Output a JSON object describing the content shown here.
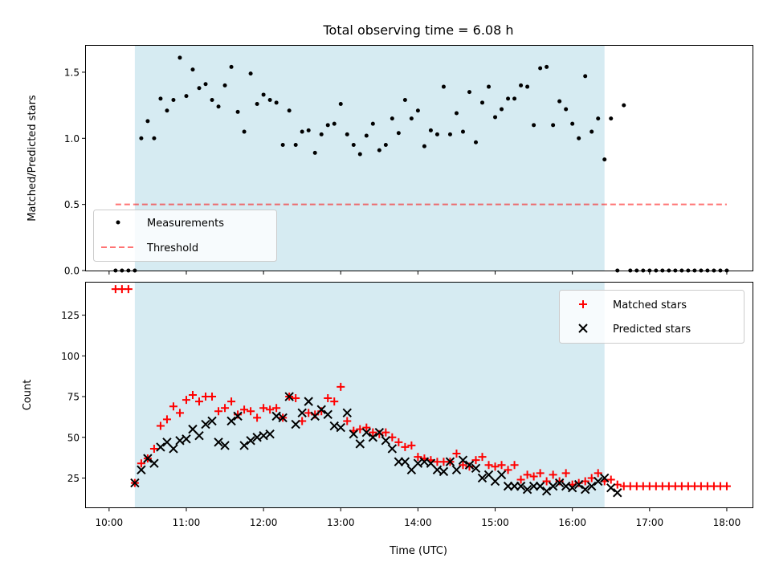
{
  "colors": {
    "span_fill": "#add8e6",
    "measurement": "#000000",
    "threshold": "#ff0000",
    "matched": "#ff0000",
    "predicted": "#000000"
  },
  "chart_data": [
    {
      "type": "scatter",
      "title": "Total observing time = 6.08 h",
      "xlabel": "",
      "ylabel": "Matched/Predicted stars",
      "xlim": [
        "09:42",
        "18:20"
      ],
      "ylim": [
        0,
        1.7
      ],
      "yticks": [
        "0.0",
        "0.5",
        "1.0",
        "1.5"
      ],
      "shaded_span": [
        "10:20",
        "16:25"
      ],
      "legend_position": "lower-left",
      "series": [
        {
          "name": "Measurements",
          "marker": "dot",
          "x": [
            "10:05",
            "10:10",
            "10:15",
            "10:20",
            "10:25",
            "10:30",
            "10:35",
            "10:40",
            "10:45",
            "10:50",
            "10:55",
            "11:00",
            "11:05",
            "11:10",
            "11:15",
            "11:20",
            "11:25",
            "11:30",
            "11:35",
            "11:40",
            "11:45",
            "11:50",
            "11:55",
            "12:00",
            "12:05",
            "12:10",
            "12:15",
            "12:20",
            "12:25",
            "12:30",
            "12:35",
            "12:40",
            "12:45",
            "12:50",
            "12:55",
            "13:00",
            "13:05",
            "13:10",
            "13:15",
            "13:20",
            "13:25",
            "13:30",
            "13:35",
            "13:40",
            "13:45",
            "13:50",
            "13:55",
            "14:00",
            "14:05",
            "14:10",
            "14:15",
            "14:20",
            "14:25",
            "14:30",
            "14:35",
            "14:40",
            "14:45",
            "14:50",
            "14:55",
            "15:00",
            "15:05",
            "15:10",
            "15:15",
            "15:20",
            "15:25",
            "15:30",
            "15:35",
            "15:40",
            "15:45",
            "15:50",
            "15:55",
            "16:00",
            "16:05",
            "16:10",
            "16:15",
            "16:20",
            "16:25",
            "16:30",
            "16:35",
            "16:40",
            "16:45",
            "16:50",
            "16:55",
            "17:00",
            "17:05",
            "17:10",
            "17:15",
            "17:20",
            "17:25",
            "17:30",
            "17:35",
            "17:40",
            "17:45",
            "17:50",
            "17:55",
            "18:00"
          ],
          "y": [
            0,
            0,
            0,
            0,
            1.0,
            1.13,
            1.0,
            1.3,
            1.21,
            1.29,
            1.61,
            1.32,
            1.52,
            1.38,
            1.41,
            1.29,
            1.24,
            1.4,
            1.54,
            1.2,
            1.05,
            1.49,
            1.26,
            1.33,
            1.29,
            1.27,
            0.95,
            1.21,
            0.95,
            1.05,
            1.06,
            0.89,
            1.03,
            1.1,
            1.11,
            1.26,
            1.03,
            0.95,
            0.88,
            1.02,
            1.11,
            0.91,
            0.95,
            1.15,
            1.04,
            1.29,
            1.15,
            1.21,
            0.94,
            1.06,
            1.03,
            1.39,
            1.03,
            1.19,
            1.05,
            1.35,
            0.97,
            1.27,
            1.39,
            1.16,
            1.22,
            1.3,
            1.3,
            1.4,
            1.39,
            1.1,
            1.53,
            1.54,
            1.1,
            1.28,
            1.22,
            1.11,
            1.0,
            1.47,
            1.05,
            1.15,
            0.84,
            1.15,
            0,
            1.25,
            0,
            0,
            0,
            0,
            0,
            0,
            0,
            0,
            0,
            0,
            0,
            0,
            0,
            0,
            0,
            0
          ]
        },
        {
          "name": "Threshold",
          "style": "dashed",
          "x": [
            "10:05",
            "18:00"
          ],
          "y": [
            0.5,
            0.5
          ]
        }
      ]
    },
    {
      "type": "scatter",
      "title": "",
      "xlabel": "Time (UTC)",
      "ylabel": "Count",
      "xlim": [
        "09:42",
        "18:20"
      ],
      "ylim": [
        7,
        145
      ],
      "yticks": [
        "25",
        "50",
        "75",
        "100",
        "125"
      ],
      "xticks": [
        "10:00",
        "11:00",
        "12:00",
        "13:00",
        "14:00",
        "15:00",
        "16:00",
        "17:00",
        "18:00"
      ],
      "shaded_span": [
        "10:20",
        "16:25"
      ],
      "legend_position": "upper-right",
      "series": [
        {
          "name": "Matched stars",
          "marker": "plus",
          "x": [
            "10:05",
            "10:10",
            "10:15",
            "10:20",
            "10:25",
            "10:30",
            "10:35",
            "10:40",
            "10:45",
            "10:50",
            "10:55",
            "11:00",
            "11:05",
            "11:10",
            "11:15",
            "11:20",
            "11:25",
            "11:30",
            "11:35",
            "11:40",
            "11:45",
            "11:50",
            "11:55",
            "12:00",
            "12:05",
            "12:10",
            "12:15",
            "12:20",
            "12:25",
            "12:30",
            "12:35",
            "12:40",
            "12:45",
            "12:50",
            "12:55",
            "13:00",
            "13:05",
            "13:10",
            "13:15",
            "13:20",
            "13:25",
            "13:30",
            "13:35",
            "13:40",
            "13:45",
            "13:50",
            "13:55",
            "14:00",
            "14:05",
            "14:10",
            "14:15",
            "14:20",
            "14:25",
            "14:30",
            "14:35",
            "14:40",
            "14:45",
            "14:50",
            "14:55",
            "15:00",
            "15:05",
            "15:10",
            "15:15",
            "15:20",
            "15:25",
            "15:30",
            "15:35",
            "15:40",
            "15:45",
            "15:50",
            "15:55",
            "16:00",
            "16:05",
            "16:10",
            "16:15",
            "16:20",
            "16:25",
            "16:30",
            "16:35",
            "16:40",
            "16:45",
            "16:50",
            "16:55",
            "17:00",
            "17:05",
            "17:10",
            "17:15",
            "17:20",
            "17:25",
            "17:30",
            "17:35",
            "17:40",
            "17:45",
            "17:50",
            "17:55",
            "18:00"
          ],
          "y": [
            141,
            141,
            141,
            22,
            34,
            37,
            43,
            57,
            61,
            69,
            65,
            73,
            76,
            72,
            75,
            75,
            66,
            68,
            72,
            64,
            67,
            66,
            62,
            68,
            67,
            68,
            62,
            75,
            74,
            60,
            65,
            64,
            66,
            74,
            72,
            81,
            60,
            54,
            55,
            56,
            53,
            52,
            53,
            50,
            47,
            44,
            45,
            38,
            37,
            36,
            35,
            35,
            35,
            40,
            33,
            32,
            36,
            38,
            33,
            32,
            33,
            30,
            33,
            24,
            27,
            26,
            28,
            23,
            27,
            23,
            28,
            21,
            22,
            23,
            25,
            28,
            23,
            24,
            21,
            20,
            20,
            20,
            20,
            20,
            20,
            20,
            20,
            20,
            20,
            20,
            20,
            20,
            20,
            20,
            20,
            20
          ]
        },
        {
          "name": "Predicted stars",
          "marker": "x",
          "x": [
            "10:20",
            "10:25",
            "10:30",
            "10:35",
            "10:40",
            "10:45",
            "10:50",
            "10:55",
            "11:00",
            "11:05",
            "11:10",
            "11:15",
            "11:20",
            "11:25",
            "11:30",
            "11:35",
            "11:40",
            "11:45",
            "11:50",
            "11:55",
            "12:00",
            "12:05",
            "12:10",
            "12:15",
            "12:20",
            "12:25",
            "12:30",
            "12:35",
            "12:40",
            "12:45",
            "12:50",
            "12:55",
            "13:00",
            "13:05",
            "13:10",
            "13:15",
            "13:20",
            "13:25",
            "13:30",
            "13:35",
            "13:40",
            "13:45",
            "13:50",
            "13:55",
            "14:00",
            "14:05",
            "14:10",
            "14:15",
            "14:20",
            "14:25",
            "14:30",
            "14:35",
            "14:40",
            "14:45",
            "14:50",
            "14:55",
            "15:00",
            "15:05",
            "15:10",
            "15:15",
            "15:20",
            "15:25",
            "15:30",
            "15:35",
            "15:40",
            "15:45",
            "15:50",
            "15:55",
            "16:00",
            "16:05",
            "16:10",
            "16:15",
            "16:20",
            "16:25",
            "16:30",
            "16:35"
          ],
          "y": [
            22,
            30,
            37,
            34,
            44,
            47,
            43,
            48,
            49,
            55,
            51,
            58,
            60,
            47,
            45,
            60,
            63,
            45,
            48,
            50,
            51,
            52,
            63,
            62,
            75,
            58,
            65,
            72,
            63,
            67,
            64,
            57,
            56,
            65,
            52,
            46,
            53,
            50,
            53,
            48,
            43,
            35,
            35,
            30,
            34,
            35,
            34,
            30,
            29,
            35,
            30,
            36,
            33,
            31,
            25,
            27,
            23,
            27,
            20,
            20,
            20,
            18,
            20,
            20,
            17,
            20,
            22,
            20,
            19,
            21,
            18,
            20,
            23,
            25,
            19,
            16
          ]
        }
      ]
    }
  ]
}
